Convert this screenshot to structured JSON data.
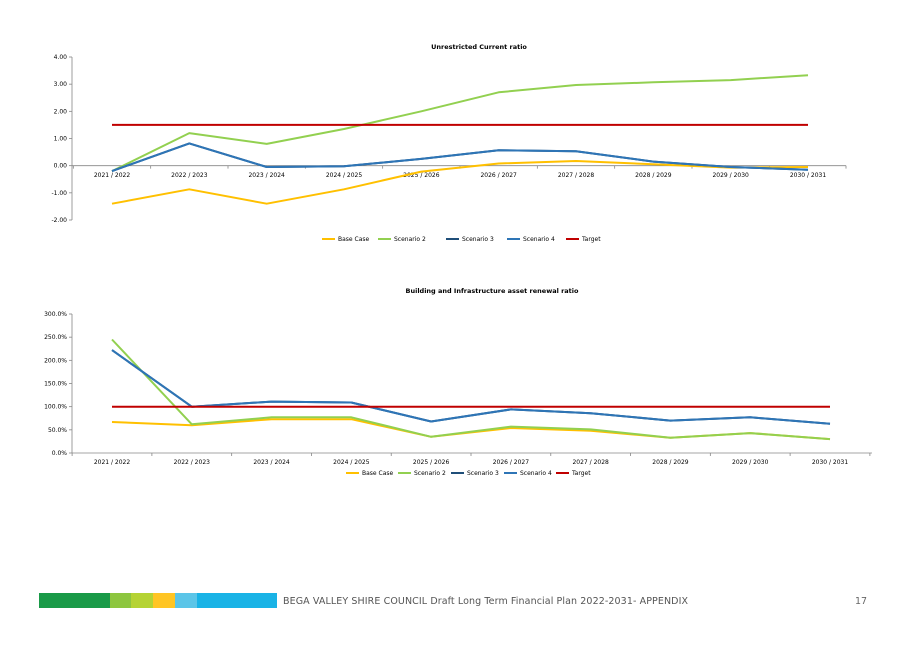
{
  "chart_data": [
    {
      "type": "line",
      "title": "Unrestricted Current ratio",
      "categories": [
        "2021 / 2022",
        "2022 / 2023",
        "2023 / 2024",
        "2024 / 2025",
        "2025 / 2026",
        "2026 / 2027",
        "2027 / 2028",
        "2028 / 2029",
        "2029 / 2030",
        "2030 / 2031"
      ],
      "ylim": [
        -2,
        4
      ],
      "yticks": [
        4,
        3,
        2,
        1,
        0,
        -1,
        -2
      ],
      "ytick_labels": [
        "4.00",
        "3.00",
        "2.00",
        "1.00",
        "0.00",
        "-1.00",
        "-2.00"
      ],
      "series": [
        {
          "name": "Base Case",
          "color": "#FFC000",
          "values": [
            -1.4,
            -0.87,
            -1.4,
            -0.87,
            -0.22,
            0.08,
            0.17,
            0.05,
            -0.07,
            -0.05
          ]
        },
        {
          "name": "Scenario 2",
          "color": "#92D050",
          "values": [
            -0.2,
            1.2,
            0.8,
            1.35,
            2.0,
            2.7,
            2.97,
            3.07,
            3.15,
            3.33
          ]
        },
        {
          "name": "Scenario 3",
          "color": "#1F4E79",
          "values": [
            -0.2,
            0.82,
            -0.05,
            -0.02,
            0.25,
            0.57,
            0.53,
            0.15,
            -0.05,
            -0.15
          ]
        },
        {
          "name": "Scenario 4",
          "color": "#2E75B6",
          "values": [
            -0.2,
            0.82,
            -0.05,
            -0.02,
            0.25,
            0.57,
            0.53,
            0.15,
            -0.05,
            -0.15
          ]
        },
        {
          "name": "Target",
          "color": "#C00000",
          "values": [
            1.5,
            1.5,
            1.5,
            1.5,
            1.5,
            1.5,
            1.5,
            1.5,
            1.5,
            1.5
          ]
        }
      ]
    },
    {
      "type": "line",
      "title": "Building and Infrastructure asset renewal ratio",
      "categories": [
        "2021 / 2022",
        "2022 / 2023",
        "2023 / 2024",
        "2024 / 2025",
        "2025 / 2026",
        "2026 / 2027",
        "2027 / 2028",
        "2028 / 2029",
        "2029 / 2030",
        "2030 / 2031"
      ],
      "ylim": [
        0,
        300
      ],
      "yticks": [
        300,
        250,
        200,
        150,
        100,
        50,
        0
      ],
      "ytick_labels": [
        "300.0%",
        "250.0%",
        "200.0%",
        "150.0%",
        "100.0%",
        "50.0%",
        "0.0%"
      ],
      "series": [
        {
          "name": "Base Case",
          "color": "#FFC000",
          "values": [
            67,
            60,
            73,
            73,
            35,
            54,
            48,
            33,
            43,
            30
          ]
        },
        {
          "name": "Scenario 2",
          "color": "#92D050",
          "values": [
            245,
            62,
            77,
            77,
            35,
            57,
            51,
            33,
            43,
            30
          ]
        },
        {
          "name": "Scenario 3",
          "color": "#1F4E79",
          "values": [
            222,
            100,
            111,
            109,
            68,
            94,
            86,
            70,
            77,
            63
          ]
        },
        {
          "name": "Scenario 4",
          "color": "#2E75B6",
          "values": [
            222,
            100,
            111,
            109,
            68,
            94,
            86,
            70,
            77,
            63
          ]
        },
        {
          "name": "Target",
          "color": "#C00000",
          "values": [
            100,
            100,
            100,
            100,
            100,
            100,
            100,
            100,
            100,
            100
          ]
        }
      ]
    }
  ],
  "footer": {
    "text": "BEGA VALLEY SHIRE COUNCIL  Draft Long Term Financial Plan 2022-2031- APPENDIX",
    "page_number": "17",
    "colors": [
      "#1A9A48",
      "#8DC63F",
      "#B5D334",
      "#FFC524",
      "#5BC5E8",
      "#19B3E6"
    ]
  }
}
